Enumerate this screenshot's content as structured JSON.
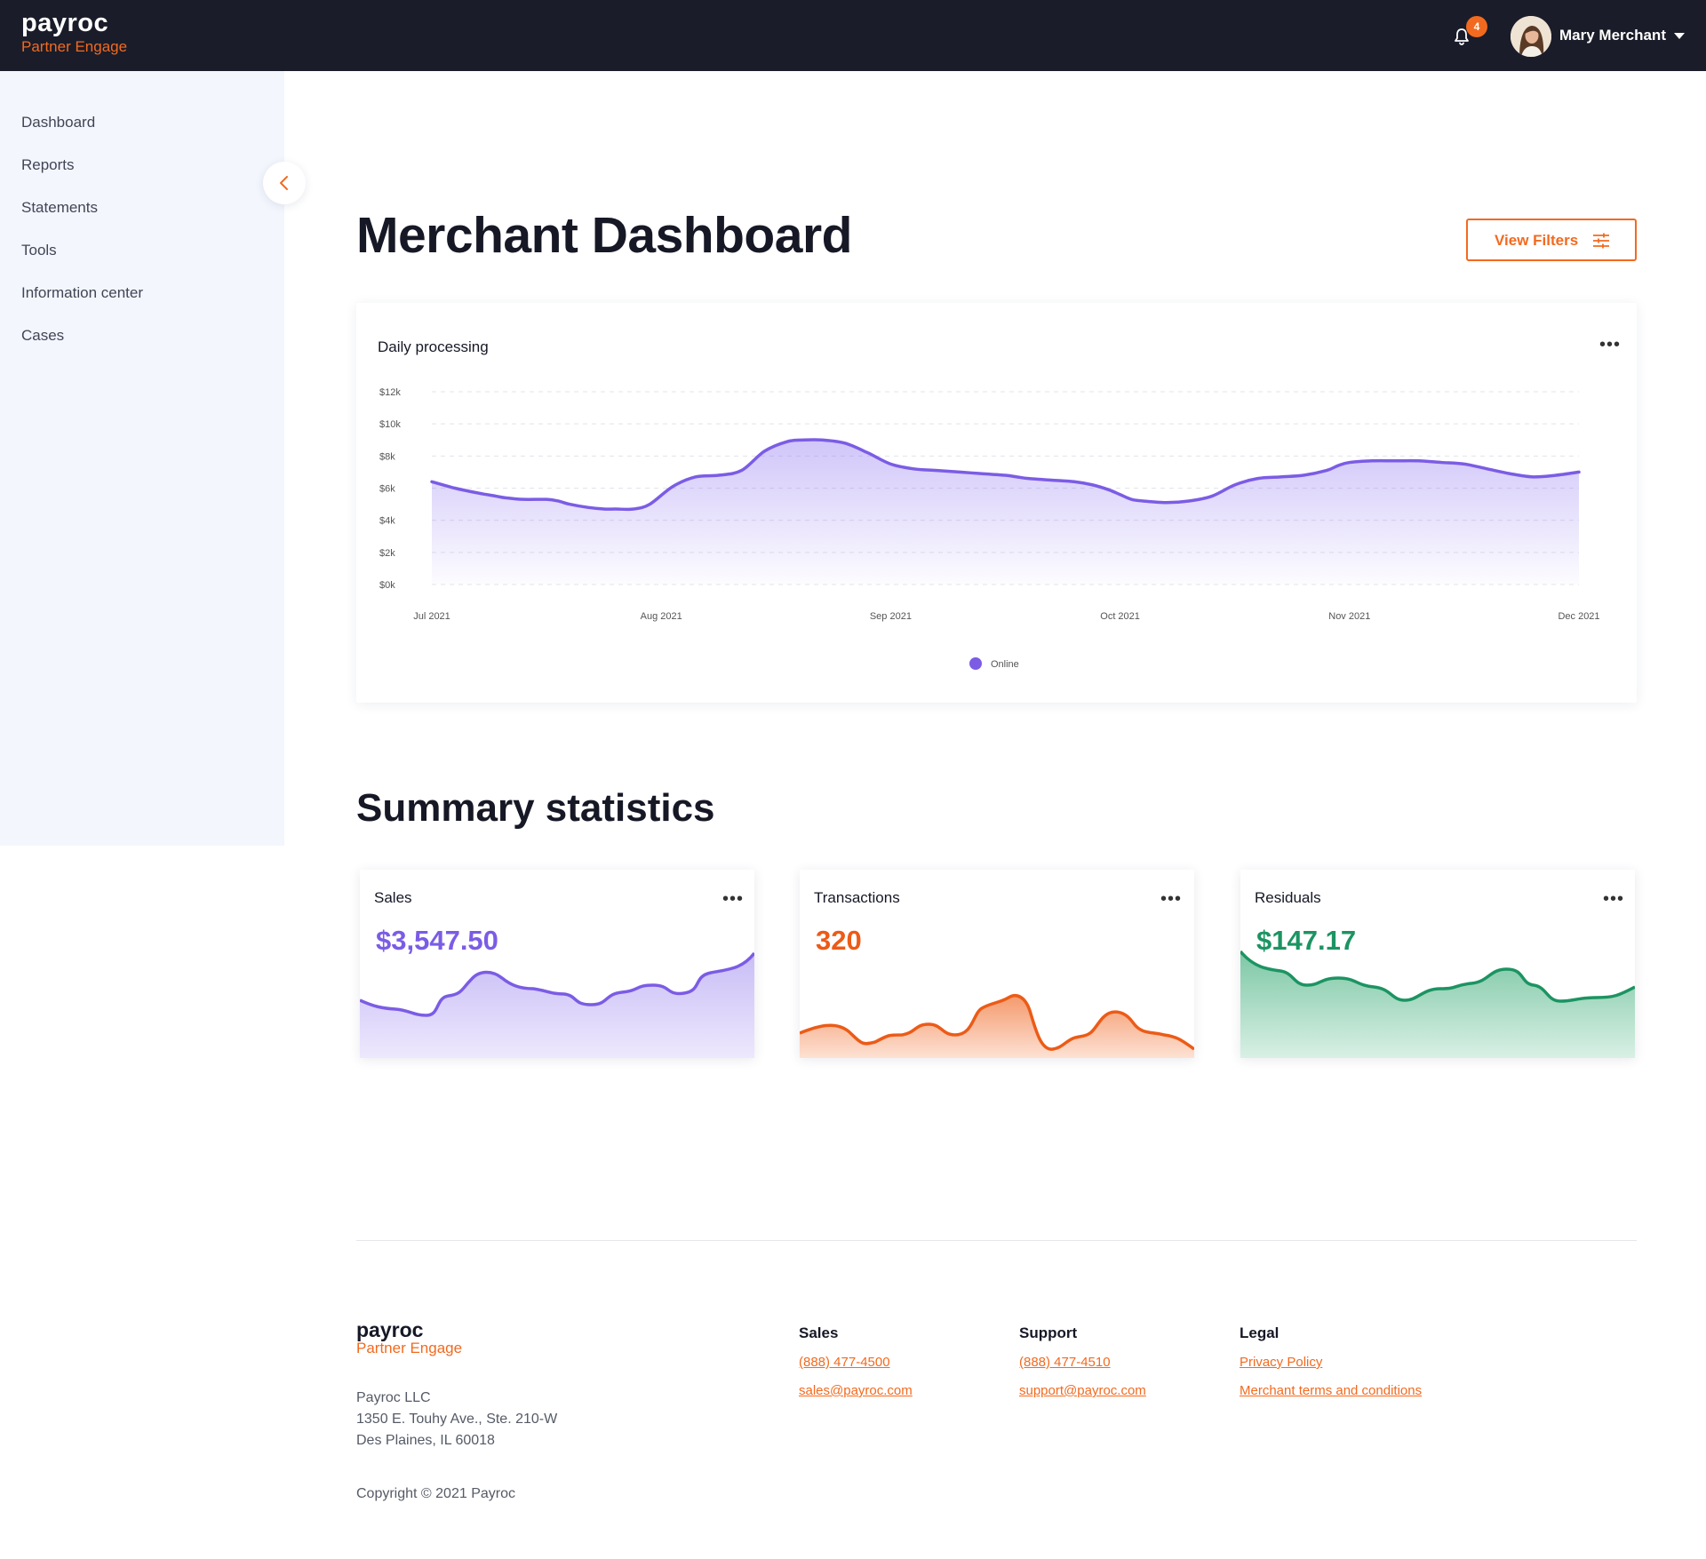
{
  "brand": {
    "logo_main": "payroc",
    "logo_sub": "Partner Engage"
  },
  "header": {
    "notification_count": "4",
    "user_name": "Mary Merchant"
  },
  "sidebar": {
    "items": [
      {
        "label": "Dashboard"
      },
      {
        "label": "Reports"
      },
      {
        "label": "Statements"
      },
      {
        "label": "Tools"
      },
      {
        "label": "Information center"
      },
      {
        "label": "Cases"
      }
    ]
  },
  "main": {
    "title": "Merchant Dashboard",
    "filters_label": "View Filters",
    "summary_title": "Summary statistics"
  },
  "chart_data": {
    "type": "area",
    "title": "Daily processing",
    "x_labels": [
      "Jul 2021",
      "Aug 2021",
      "Sep 2021",
      "Oct 2021",
      "Nov 2021",
      "Dec 2021"
    ],
    "y_ticks": [
      "$0k",
      "$2k",
      "$4k",
      "$6k",
      "$8k",
      "$10k",
      "$12k"
    ],
    "ylim": [
      0,
      12000
    ],
    "grid": true,
    "legend_position": "bottom-center",
    "series": [
      {
        "name": "Online",
        "color": "#7b5ce5",
        "x": [
          0,
          0.1,
          0.2,
          0.28,
          0.32,
          0.4,
          0.5,
          0.55,
          0.6,
          0.68,
          0.75,
          0.8,
          0.88,
          0.95,
          1.05,
          1.15,
          1.25,
          1.35,
          1.45,
          1.55,
          1.62,
          1.7,
          1.8,
          1.9,
          2.0,
          2.1,
          2.2,
          2.3,
          2.4,
          2.5,
          2.55,
          2.6,
          2.7,
          2.8,
          2.88,
          2.95,
          3.0,
          3.05,
          3.1,
          3.2,
          3.3,
          3.4,
          3.5,
          3.6,
          3.7,
          3.8,
          3.9,
          3.95,
          4.0,
          4.1,
          4.2,
          4.3,
          4.4,
          4.5,
          4.6,
          4.7,
          4.8,
          4.9,
          5.0
        ],
        "values": [
          6400,
          6000,
          5700,
          5500,
          5400,
          5300,
          5300,
          5200,
          5000,
          4800,
          4700,
          4700,
          4700,
          5000,
          6100,
          6700,
          6800,
          7100,
          8300,
          8900,
          9000,
          9000,
          8800,
          8200,
          7500,
          7200,
          7100,
          7000,
          6900,
          6800,
          6700,
          6600,
          6500,
          6400,
          6200,
          5900,
          5600,
          5300,
          5200,
          5100,
          5200,
          5500,
          6200,
          6600,
          6700,
          6800,
          7100,
          7400,
          7600,
          7700,
          7700,
          7700,
          7600,
          7500,
          7200,
          6900,
          6700,
          6800,
          7000
        ]
      }
    ]
  },
  "stats": [
    {
      "label": "Sales",
      "value": "$3,547.50",
      "color": "#7b5ce5",
      "fill_top": "#c9bdf6",
      "fill_bottom": "#ede8fd"
    },
    {
      "label": "Transactions",
      "value": "320",
      "color": "#ec5b17",
      "fill_top": "#f49a6d",
      "fill_bottom": "#fde1d3"
    },
    {
      "label": "Residuals",
      "value": "$147.17",
      "color": "#1c9462",
      "fill_top": "#7dc7a5",
      "fill_bottom": "#d9f0e5"
    }
  ],
  "footer": {
    "logo_main": "payroc",
    "logo_sub": "Partner Engage",
    "address": [
      "Payroc LLC",
      "1350 E. Touhy Ave., Ste. 210-W",
      "Des Plaines, IL 60018"
    ],
    "copyright": "Copyright © 2021 Payroc",
    "sales": {
      "title": "Sales",
      "phone": "(888) 477-4500",
      "email": "sales@payroc.com"
    },
    "support": {
      "title": "Support",
      "phone": "(888) 477-4510",
      "email": "support@payroc.com"
    },
    "legal": {
      "title": "Legal",
      "privacy": "Privacy Policy",
      "terms": "Merchant terms and conditions"
    }
  }
}
